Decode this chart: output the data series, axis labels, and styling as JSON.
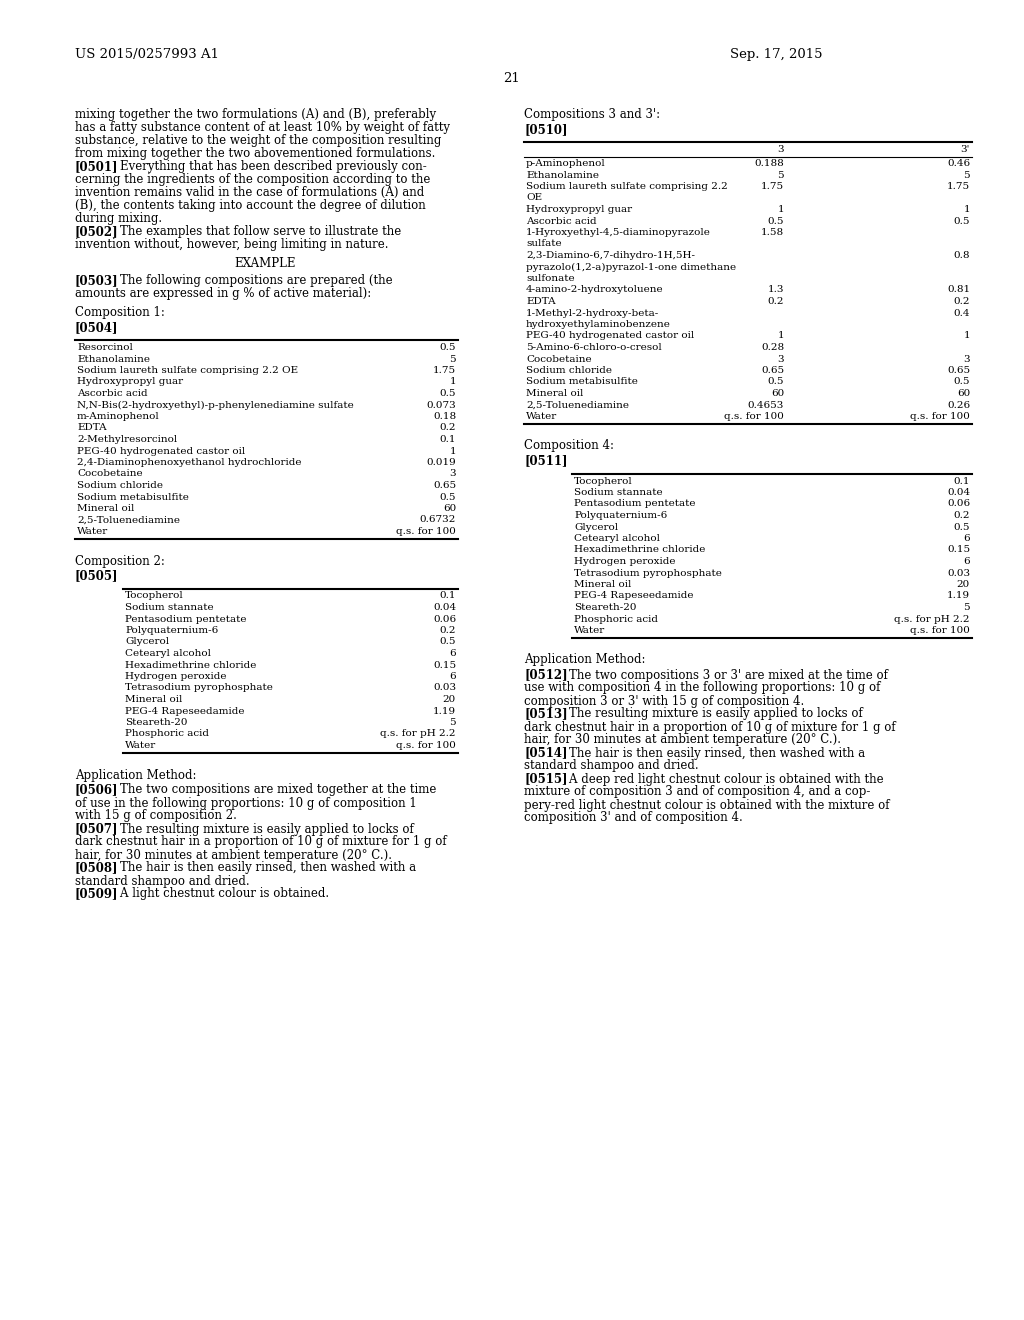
{
  "page_number": "21",
  "header_left": "US 2015/0257993 A1",
  "header_right": "Sep. 17, 2015",
  "bg_color": "#ffffff",
  "text_color": "#000000",
  "left_col": {
    "intro_lines": [
      [
        "normal",
        "mixing together the two formulations (A) and (B), preferably"
      ],
      [
        "normal",
        "has a fatty substance content of at least 10% by weight of fatty"
      ],
      [
        "normal",
        "substance, relative to the weight of the composition resulting"
      ],
      [
        "normal",
        "from mixing together the two abovementioned formulations."
      ],
      [
        "bold_tag",
        "[0501]",
        "    Everything that has been described previously con-"
      ],
      [
        "normal",
        "cerning the ingredients of the composition according to the"
      ],
      [
        "normal",
        "invention remains valid in the case of formulations (A) and"
      ],
      [
        "normal",
        "(B), the contents taking into account the degree of dilution"
      ],
      [
        "normal",
        "during mixing."
      ],
      [
        "bold_tag",
        "[0502]",
        "    The examples that follow serve to illustrate the"
      ],
      [
        "normal",
        "invention without, however, being limiting in nature."
      ]
    ],
    "example_heading": "EXAMPLE",
    "para_0503_tag": "[0503]",
    "para_0503_lines": [
      "    The following compositions are prepared (the",
      "amounts are expressed in g % of active material):"
    ],
    "comp1_heading": "Composition 1:",
    "comp1_tag": "[0504]",
    "comp1_rows": [
      [
        "Resorcinol",
        "0.5"
      ],
      [
        "Ethanolamine",
        "5"
      ],
      [
        "Sodium laureth sulfate comprising 2.2 OE",
        "1.75"
      ],
      [
        "Hydroxypropyl guar",
        "1"
      ],
      [
        "Ascorbic acid",
        "0.5"
      ],
      [
        "N,N-Bis(2-hydroxyethyl)-p-phenylenediamine sulfate",
        "0.073"
      ],
      [
        "m-Aminophenol",
        "0.18"
      ],
      [
        "EDTA",
        "0.2"
      ],
      [
        "2-Methylresorcinol",
        "0.1"
      ],
      [
        "PEG-40 hydrogenated castor oil",
        "1"
      ],
      [
        "2,4-Diaminophenoxyethanol hydrochloride",
        "0.019"
      ],
      [
        "Cocobetaine",
        "3"
      ],
      [
        "Sodium chloride",
        "0.65"
      ],
      [
        "Sodium metabisulfite",
        "0.5"
      ],
      [
        "Mineral oil",
        "60"
      ],
      [
        "2,5-Toluenediamine",
        "0.6732"
      ],
      [
        "Water",
        "q.s. for 100"
      ]
    ],
    "comp2_heading": "Composition 2:",
    "comp2_tag": "[0505]",
    "comp2_rows": [
      [
        "Tocopherol",
        "0.1"
      ],
      [
        "Sodium stannate",
        "0.04"
      ],
      [
        "Pentasodium pentetate",
        "0.06"
      ],
      [
        "Polyquaternium-6",
        "0.2"
      ],
      [
        "Glycerol",
        "0.5"
      ],
      [
        "Cetearyl alcohol",
        "6"
      ],
      [
        "Hexadimethrine chloride",
        "0.15"
      ],
      [
        "Hydrogen peroxide",
        "6"
      ],
      [
        "Tetrasodium pyrophosphate",
        "0.03"
      ],
      [
        "Mineral oil",
        "20"
      ],
      [
        "PEG-4 Rapeseedamide",
        "1.19"
      ],
      [
        "Steareth-20",
        "5"
      ],
      [
        "Phosphoric acid",
        "q.s. for pH 2.2"
      ],
      [
        "Water",
        "q.s. for 100"
      ]
    ],
    "app_method": "Application Method:",
    "paras_left": [
      [
        "[0506]",
        "    The two compositions are mixed together at the time",
        "of use in the following proportions: 10 g of composition 1",
        "with 15 g of composition 2."
      ],
      [
        "[0507]",
        "    The resulting mixture is easily applied to locks of",
        "dark chestnut hair in a proportion of 10 g of mixture for 1 g of",
        "hair, for 30 minutes at ambient temperature (20° C.)."
      ],
      [
        "[0508]",
        "    The hair is then easily rinsed, then washed with a",
        "standard shampoo and dried."
      ],
      [
        "[0509]",
        "    A light chestnut colour is obtained."
      ]
    ]
  },
  "right_col": {
    "comp3_heading": "Compositions 3 and 3':",
    "comp3_tag": "[0510]",
    "comp3_col_headers": [
      "3",
      "3'"
    ],
    "comp3_rows": [
      [
        "p-Aminophenol",
        "0.188",
        "0.46"
      ],
      [
        "Ethanolamine",
        "5",
        "5"
      ],
      [
        "Sodium laureth sulfate comprising 2.2",
        "1.75",
        "1.75"
      ],
      [
        "OE",
        "",
        ""
      ],
      [
        "Hydroxypropyl guar",
        "1",
        "1"
      ],
      [
        "Ascorbic acid",
        "0.5",
        "0.5"
      ],
      [
        "1-Hyroxyethyl-4,5-diaminopyrazole",
        "1.58",
        ""
      ],
      [
        "sulfate",
        "",
        ""
      ],
      [
        "2,3-Diamino-6,7-dihydro-1H,5H-",
        "",
        "0.8"
      ],
      [
        "pyrazolo(1,2-a)pyrazol-1-one dimethane",
        "",
        ""
      ],
      [
        "sulfonate",
        "",
        ""
      ],
      [
        "4-amino-2-hydroxytoluene",
        "1.3",
        "0.81"
      ],
      [
        "EDTA",
        "0.2",
        "0.2"
      ],
      [
        "1-Methyl-2-hydroxy-beta-",
        "",
        "0.4"
      ],
      [
        "hydroxyethylaminobenzene",
        "",
        ""
      ],
      [
        "PEG-40 hydrogenated castor oil",
        "1",
        "1"
      ],
      [
        "5-Amino-6-chloro-o-cresol",
        "0.28",
        ""
      ],
      [
        "Cocobetaine",
        "3",
        "3"
      ],
      [
        "Sodium chloride",
        "0.65",
        "0.65"
      ],
      [
        "Sodium metabisulfite",
        "0.5",
        "0.5"
      ],
      [
        "Mineral oil",
        "60",
        "60"
      ],
      [
        "2,5-Toluenediamine",
        "0.4653",
        "0.26"
      ],
      [
        "Water",
        "q.s. for 100",
        "q.s. for 100"
      ]
    ],
    "comp4_heading": "Composition 4:",
    "comp4_tag": "[0511]",
    "comp4_rows": [
      [
        "Tocopherol",
        "0.1"
      ],
      [
        "Sodium stannate",
        "0.04"
      ],
      [
        "Pentasodium pentetate",
        "0.06"
      ],
      [
        "Polyquaternium-6",
        "0.2"
      ],
      [
        "Glycerol",
        "0.5"
      ],
      [
        "Cetearyl alcohol",
        "6"
      ],
      [
        "Hexadimethrine chloride",
        "0.15"
      ],
      [
        "Hydrogen peroxide",
        "6"
      ],
      [
        "Tetrasodium pyrophosphate",
        "0.03"
      ],
      [
        "Mineral oil",
        "20"
      ],
      [
        "PEG-4 Rapeseedamide",
        "1.19"
      ],
      [
        "Steareth-20",
        "5"
      ],
      [
        "Phosphoric acid",
        "q.s. for pH 2.2"
      ],
      [
        "Water",
        "q.s. for 100"
      ]
    ],
    "app_method": "Application Method:",
    "paras_right": [
      [
        "[0512]",
        "    The two compositions 3 or 3' are mixed at the time of",
        "use with composition 4 in the following proportions: 10 g of",
        "composition 3 or 3' with 15 g of composition 4."
      ],
      [
        "[0513]",
        "    The resulting mixture is easily applied to locks of",
        "dark chestnut hair in a proportion of 10 g of mixture for 1 g of",
        "hair, for 30 minutes at ambient temperature (20° C.)."
      ],
      [
        "[0514]",
        "    The hair is then easily rinsed, then washed with a",
        "standard shampoo and dried."
      ],
      [
        "[0515]",
        "    A deep red light chestnut colour is obtained with the",
        "mixture of composition 3 and of composition 4, and a cop-",
        "pery-red light chestnut colour is obtained with the mixture of",
        "composition 3' and of composition 4."
      ]
    ]
  }
}
